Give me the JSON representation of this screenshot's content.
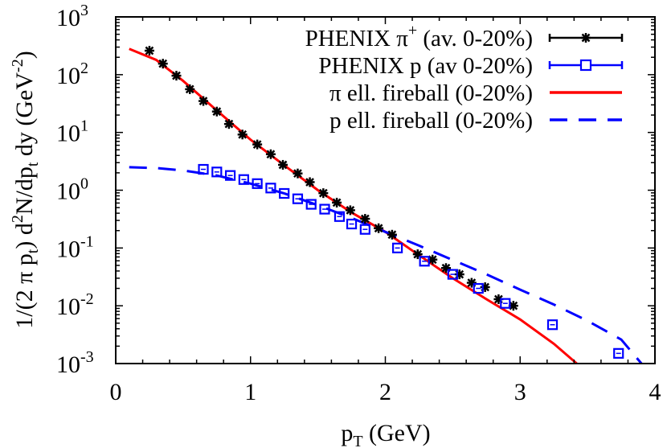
{
  "chart_data": {
    "type": "scatter",
    "title": "",
    "xlabel": "p_T (GeV)",
    "ylabel": "1/(2 π p_t) d²N/dp_t dy (GeV⁻²)",
    "xlim": [
      0,
      4
    ],
    "ylim": [
      0.001,
      1000
    ],
    "yscale": "log",
    "x_ticks": [
      0,
      1,
      2,
      3,
      4
    ],
    "y_ticks": [
      {
        "value": 1000,
        "base": "10",
        "exp": "3"
      },
      {
        "value": 100,
        "base": "10",
        "exp": "2"
      },
      {
        "value": 10,
        "base": "10",
        "exp": "1"
      },
      {
        "value": 1,
        "base": "10",
        "exp": "0"
      },
      {
        "value": 0.1,
        "base": "10",
        "exp": "-1"
      },
      {
        "value": 0.01,
        "base": "10",
        "exp": "-2"
      },
      {
        "value": 0.001,
        "base": "10",
        "exp": "-3"
      }
    ],
    "grid": false,
    "legend_position": "top-right",
    "series": [
      {
        "name": "PHENIX π+ (av. 0-20%)",
        "kind": "points",
        "marker": "asterisk",
        "color": "#000000",
        "x": [
          0.25,
          0.35,
          0.45,
          0.55,
          0.65,
          0.75,
          0.84,
          0.94,
          1.05,
          1.15,
          1.24,
          1.35,
          1.44,
          1.54,
          1.64,
          1.74,
          1.85,
          1.95,
          2.05,
          2.24,
          2.35,
          2.45,
          2.55,
          2.64,
          2.74,
          2.84,
          2.95
        ],
        "y": [
          260,
          155,
          96,
          56,
          35,
          23,
          14,
          9.2,
          6.2,
          4.2,
          2.75,
          1.95,
          1.38,
          0.89,
          0.61,
          0.45,
          0.32,
          0.22,
          0.17,
          0.078,
          0.063,
          0.045,
          0.035,
          0.025,
          0.021,
          0.013,
          0.01
        ]
      },
      {
        "name": "PHENIX p (av 0-20%)",
        "kind": "points",
        "marker": "open-square",
        "color": "#0000ff",
        "x": [
          0.65,
          0.75,
          0.85,
          0.95,
          1.05,
          1.15,
          1.25,
          1.35,
          1.45,
          1.55,
          1.66,
          1.75,
          1.85,
          2.09,
          2.29,
          2.5,
          2.69,
          2.89,
          3.24,
          3.73
        ],
        "y": [
          2.3,
          2.07,
          1.8,
          1.53,
          1.3,
          1.09,
          0.88,
          0.71,
          0.57,
          0.47,
          0.35,
          0.26,
          0.21,
          0.1,
          0.059,
          0.035,
          0.02,
          0.011,
          0.0047,
          0.0015
        ]
      },
      {
        "name": "π ell. fireball (0-20%)",
        "kind": "line",
        "style": "solid",
        "color": "#ff0000",
        "x": [
          0.1,
          0.3,
          0.5,
          0.75,
          1.0,
          1.25,
          1.5,
          1.75,
          2.0,
          2.25,
          2.5,
          2.75,
          3.0,
          3.25,
          3.42
        ],
        "y": [
          280,
          180,
          78,
          24,
          7.5,
          2.7,
          1.0,
          0.41,
          0.19,
          0.075,
          0.03,
          0.013,
          0.0058,
          0.0022,
          0.001
        ]
      },
      {
        "name": "p ell. fireball (0-20%)",
        "kind": "line",
        "style": "dashed",
        "color": "#0000ff",
        "x": [
          0.1,
          0.3,
          0.5,
          0.75,
          1.0,
          1.25,
          1.5,
          1.75,
          2.0,
          2.25,
          2.5,
          2.75,
          3.0,
          3.25,
          3.5,
          3.75,
          3.9
        ],
        "y": [
          2.5,
          2.42,
          2.2,
          1.8,
          1.3,
          0.88,
          0.55,
          0.33,
          0.19,
          0.11,
          0.062,
          0.035,
          0.019,
          0.0105,
          0.0055,
          0.0026,
          0.001
        ]
      }
    ]
  },
  "legend": {
    "entries": [
      {
        "label": "PHENIX π",
        "sup": "+",
        "label_after": " (av. 0-20%)"
      },
      {
        "label": "PHENIX p (av 0-20%)",
        "sup": "",
        "label_after": ""
      },
      {
        "label": "π ell. fireball (0-20%)",
        "sup": "",
        "label_after": ""
      },
      {
        "label": "p ell. fireball (0-20%)",
        "sup": "",
        "label_after": ""
      }
    ]
  },
  "axes": {
    "x_title_main": "p",
    "x_title_sub": "T",
    "x_title_rest": " (GeV)",
    "y_title": "1/(2 π p_t) d²N/dp_t dy (GeV⁻²)"
  },
  "colors": {
    "pion_data": "#000000",
    "proton_data": "#0000ff",
    "pion_model": "#ff0000",
    "proton_model": "#0000ff"
  }
}
